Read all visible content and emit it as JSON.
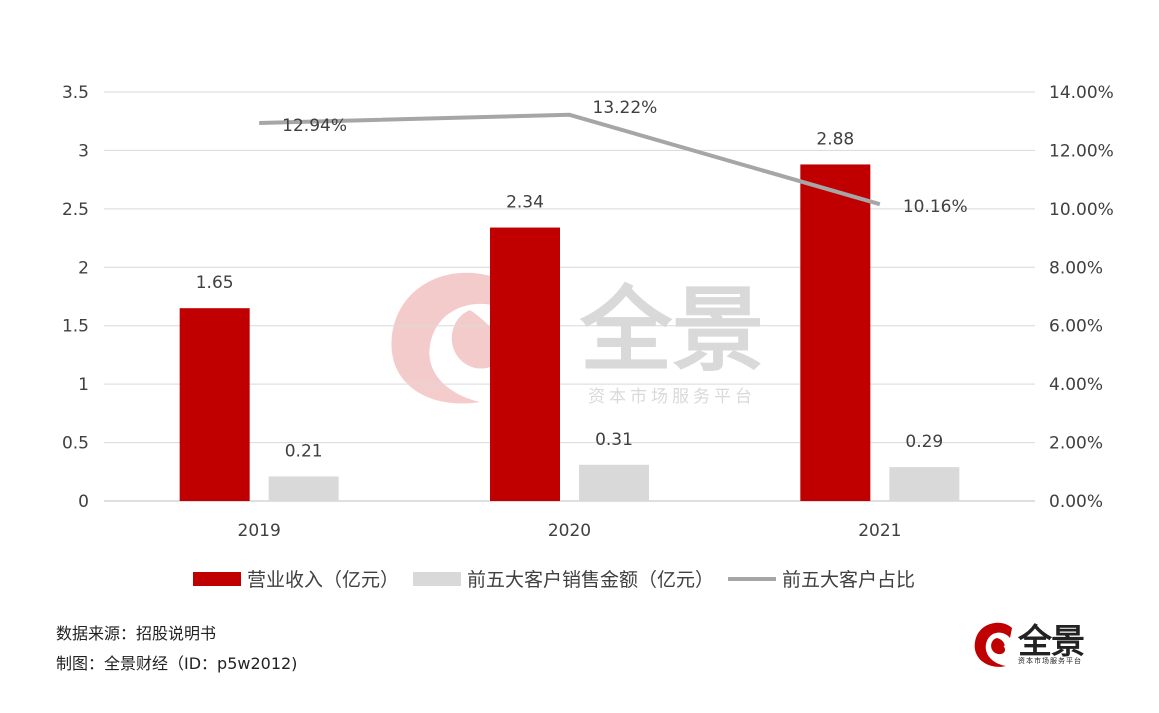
{
  "chart_data": {
    "type": "bar",
    "categories": [
      "2019",
      "2020",
      "2021"
    ],
    "series": [
      {
        "name": "营业收入（亿元）",
        "type": "bar",
        "axis": "left",
        "color": "#C00000",
        "values": [
          1.65,
          2.34,
          2.88
        ],
        "labels": [
          "1.65",
          "2.34",
          "2.88"
        ]
      },
      {
        "name": "前五大客户销售金额（亿元）",
        "type": "bar",
        "axis": "left",
        "color": "#D9D9D9",
        "values": [
          0.21,
          0.31,
          0.29
        ],
        "labels": [
          "0.21",
          "0.31",
          "0.29"
        ]
      },
      {
        "name": "前五大客户占比",
        "type": "line",
        "axis": "right",
        "color": "#A6A6A6",
        "values": [
          12.94,
          13.22,
          10.16
        ],
        "labels": [
          "12.94%",
          "13.22%",
          "10.16%"
        ]
      }
    ],
    "y_left": {
      "min": 0,
      "max": 3.5,
      "ticks": [
        "0",
        "0.5",
        "1",
        "1.5",
        "2",
        "2.5",
        "3",
        "3.5"
      ]
    },
    "y_right": {
      "min": 0,
      "max": 14,
      "ticks": [
        "0.00%",
        "2.00%",
        "4.00%",
        "6.00%",
        "8.00%",
        "10.00%",
        "12.00%",
        "14.00%"
      ]
    },
    "grid": true,
    "legend_position": "bottom"
  },
  "footer": {
    "source": "数据来源：招股说明书",
    "credit": "制图：全景财经（ID：p5w2012)"
  },
  "watermark": {
    "brand": "全景",
    "tagline": "资本市场服务平台"
  },
  "logo": {
    "brand": "全景",
    "tagline": "资本市场服务平台"
  },
  "colors": {
    "accent": "#C00000",
    "secondary": "#D9D9D9",
    "line": "#A6A6A6"
  }
}
